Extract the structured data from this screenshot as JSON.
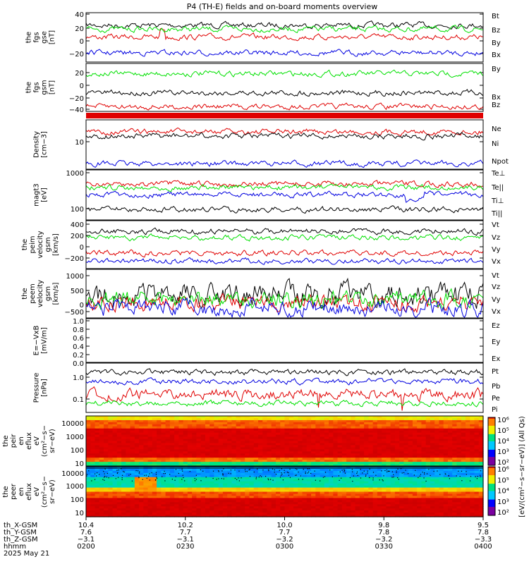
{
  "title": "P4 (TH-E) fields and on-board moments overview",
  "colors": {
    "black": "#000000",
    "red": "#e00000",
    "green": "#00e000",
    "blue": "#0000e0"
  },
  "chart_data": [
    {
      "type": "line",
      "panel": "fgs_gse",
      "ylabel": [
        "the",
        "fgs",
        "gse",
        "[nT]"
      ],
      "yticks": [
        "40",
        "20",
        "0",
        "−20"
      ],
      "ylim": [
        -30,
        45
      ],
      "series": [
        {
          "name": "Bt",
          "color": "#000000",
          "base": 26
        },
        {
          "name": "Bz",
          "color": "#e00000",
          "base": 8
        },
        {
          "name": "By",
          "color": "#00e000",
          "base": 20
        },
        {
          "name": "Bx",
          "color": "#0000e0",
          "base": -16
        }
      ]
    },
    {
      "type": "line",
      "panel": "fgs_gsm",
      "ylabel": [
        "the",
        "fgs",
        "gsm",
        "[nT]"
      ],
      "yticks": [
        "20",
        "0",
        "−20",
        "−40"
      ],
      "ylim": [
        -45,
        35
      ],
      "series": [
        {
          "name": "By",
          "color": "#00e000",
          "base": 18
        },
        {
          "name": "Bx",
          "color": "#000000",
          "base": -14
        },
        {
          "name": "Bz",
          "color": "#e00000",
          "base": -37
        }
      ]
    },
    {
      "type": "line",
      "panel": "density",
      "ylabel": [
        "Density",
        "[cm−3]"
      ],
      "yticks": [
        "10"
      ],
      "scale": "log",
      "series": [
        {
          "name": "Ne",
          "color": "#e00000"
        },
        {
          "name": "Ni",
          "color": "#000000"
        },
        {
          "name": "Npot",
          "color": "#0000e0"
        }
      ]
    },
    {
      "type": "line",
      "panel": "temperature",
      "ylabel": [
        "magt3",
        "[eV]"
      ],
      "yticks": [
        "1000",
        "100"
      ],
      "scale": "log",
      "series": [
        {
          "name": "Te⊥",
          "color": "#e00000"
        },
        {
          "name": "Te||",
          "color": "#000000"
        },
        {
          "name": "Ti⊥",
          "color": "#0000e0"
        },
        {
          "name": "Ti||",
          "color": "#00e000"
        }
      ]
    },
    {
      "type": "line",
      "panel": "peim_velocity",
      "ylabel": [
        "the",
        "peim",
        "velocity",
        "gsm",
        "[km/s]"
      ],
      "yticks": [
        "400",
        "200",
        "0",
        "−200"
      ],
      "ylim": [
        -260,
        420
      ],
      "series": [
        {
          "name": "Vt",
          "color": "#000000",
          "base": 270
        },
        {
          "name": "Vz",
          "color": "#e00000",
          "base": -40
        },
        {
          "name": "Vy",
          "color": "#00e000",
          "base": 180
        },
        {
          "name": "Vx",
          "color": "#0000e0",
          "base": -150
        }
      ]
    },
    {
      "type": "line",
      "panel": "peem_velocity",
      "ylabel": [
        "the",
        "peem",
        "velocity",
        "gsm",
        "[km/s]"
      ],
      "yticks": [
        "1000",
        "500",
        "0",
        "−500"
      ],
      "ylim": [
        -650,
        1400
      ],
      "series": [
        {
          "name": "Vt",
          "color": "#000000",
          "base": 300
        },
        {
          "name": "Vz",
          "color": "#e00000",
          "base": 0
        },
        {
          "name": "Vy",
          "color": "#00e000",
          "base": 120
        },
        {
          "name": "Vx",
          "color": "#0000e0",
          "base": -250
        }
      ]
    },
    {
      "type": "line",
      "panel": "efield",
      "ylabel": [
        "E=−VxB",
        "[mV/m]"
      ],
      "yticks": [
        "1.0",
        "0.8",
        "0.6",
        "0.4",
        "0.2",
        "0.0"
      ],
      "ylim": [
        0,
        1
      ],
      "series": [
        {
          "name": "Ez",
          "color": "#e00000"
        },
        {
          "name": "Ey",
          "color": "#00e000"
        },
        {
          "name": "Ex",
          "color": "#0000e0"
        }
      ]
    },
    {
      "type": "line",
      "panel": "pressure",
      "ylabel": [
        "Pressure",
        "[nPa]"
      ],
      "yticks": [
        "1.0",
        "0.1"
      ],
      "scale": "log",
      "series": [
        {
          "name": "Pt",
          "color": "#000000"
        },
        {
          "name": "Pb",
          "color": "#e00000"
        },
        {
          "name": "Pe",
          "color": "#00e000"
        },
        {
          "name": "Pi",
          "color": "#0000e0"
        }
      ]
    },
    {
      "type": "heatmap",
      "panel": "peir_eflux",
      "ylabel": [
        "the",
        "peir",
        "en",
        "eflux",
        "eV",
        "(cm²−s−",
        "sr−eV)"
      ],
      "yticks": [
        "10000",
        "1000",
        "100",
        "10"
      ],
      "scale": "log"
    },
    {
      "type": "heatmap",
      "panel": "peer_eflux",
      "ylabel": [
        "the",
        "peer",
        "en",
        "eflux",
        "eV",
        "(cm²−s−",
        "sr−eV)"
      ],
      "yticks": [
        "10000",
        "1000",
        "100",
        "10"
      ],
      "scale": "log"
    }
  ],
  "colorbar": {
    "upper_ticks": [
      "10⁶",
      "10⁵",
      "10⁴",
      "10³",
      "10²"
    ],
    "lower_ticks": [
      "10⁶",
      "10⁵",
      "10⁴",
      "10³",
      "10²"
    ],
    "label": "[eV/(cm²−s−sr−eV)] (All Qs)"
  },
  "x_axis": {
    "row_labels": [
      "th_X-GSM",
      "th_Y-GSM",
      "th_Z-GSM",
      "hhmm",
      "2025 May 21"
    ],
    "ticks": [
      {
        "x": "10.4",
        "y": "7.6",
        "z": "−3.1",
        "time": "0200"
      },
      {
        "x": "10.2",
        "y": "7.7",
        "z": "−3.1",
        "time": "0230"
      },
      {
        "x": "10.0",
        "y": "7.7",
        "z": "−3.2",
        "time": "0300"
      },
      {
        "x": "9.8",
        "y": "7.8",
        "z": "−3.2",
        "time": "0330"
      },
      {
        "x": "9.5",
        "y": "7.8",
        "z": "−3.3",
        "time": "0400"
      }
    ]
  }
}
